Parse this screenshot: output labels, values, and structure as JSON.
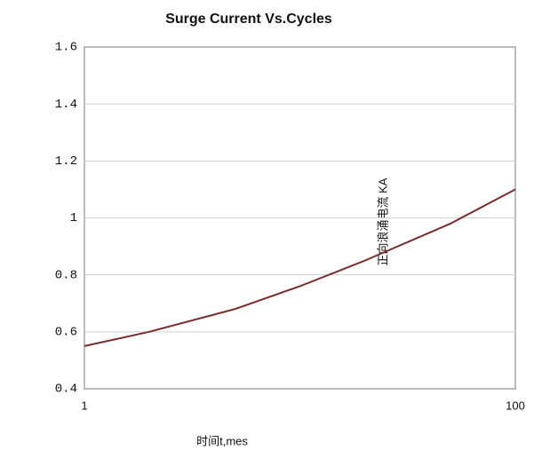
{
  "chart_data": {
    "type": "line",
    "title": "Surge Current Vs.Cycles",
    "x_label": "时间t,mes",
    "y_label": "正向浪涌电流 KA",
    "x": [
      1,
      2,
      5,
      10,
      20,
      50,
      100
    ],
    "values": [
      0.55,
      0.6,
      0.68,
      0.76,
      0.85,
      0.98,
      1.1
    ],
    "color": "#7a2a2a",
    "xscale": "log",
    "xlim": [
      1,
      100
    ],
    "xticks": [
      1,
      100
    ],
    "ylim": [
      0.4,
      1.6
    ],
    "yticks": [
      0.4,
      0.6,
      0.8,
      1,
      1.2,
      1.4,
      1.6
    ],
    "grid": true
  }
}
